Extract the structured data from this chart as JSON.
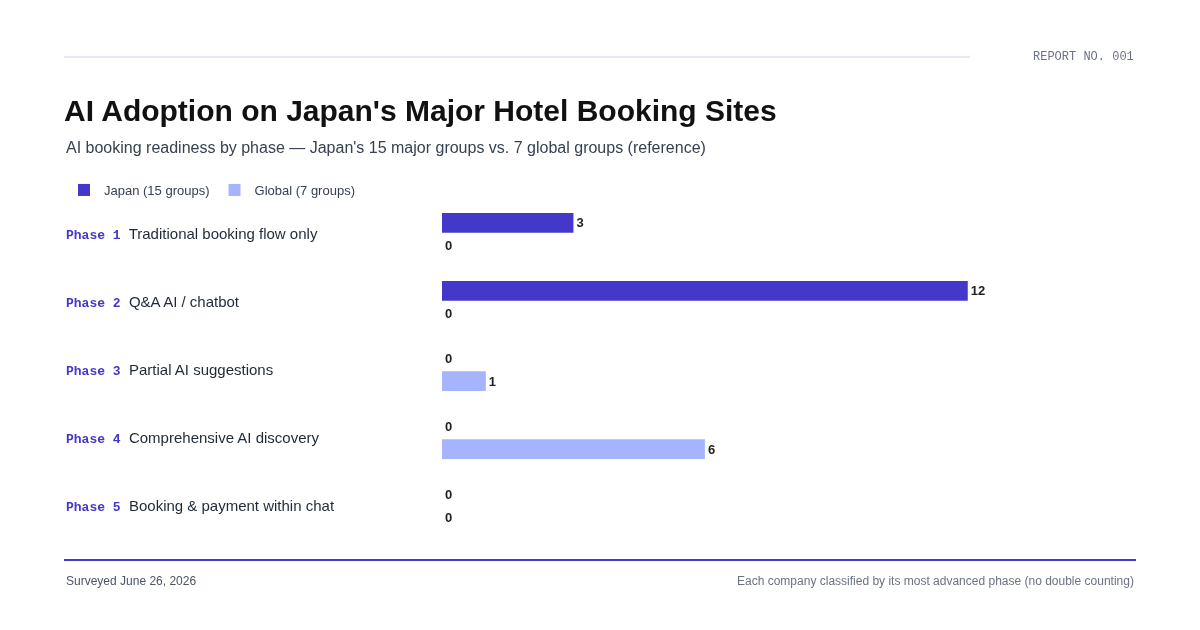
{
  "chart_data": {
    "type": "bar",
    "orientation": "horizontal",
    "title": "AI Adoption on Japan's Major Hotel Booking Sites",
    "subtitle": "AI booking readiness by phase — Japan's 15 major groups vs. 7 global groups (reference)",
    "categories": [
      "Phase 1 Traditional booking flow only",
      "Phase 2 Q&A AI / chatbot",
      "Phase 3 Partial AI suggestions",
      "Phase 4 Comprehensive AI discovery",
      "Phase 5 Booking & payment within chat"
    ],
    "series": [
      {
        "name": "Japan (15 groups)",
        "color": "#4338ca",
        "values": [
          3,
          12,
          0,
          0,
          0
        ]
      },
      {
        "name": "Global (7 groups)",
        "color": "#a5b4fc",
        "values": [
          0,
          0,
          1,
          6,
          0
        ]
      }
    ],
    "data_labels": true,
    "legend": "top left",
    "annotations": [
      "REPORT NO. 001",
      "Surveyed June 26, 2026",
      "Each company classified by its most advanced phase (no double counting)"
    ]
  }
}
